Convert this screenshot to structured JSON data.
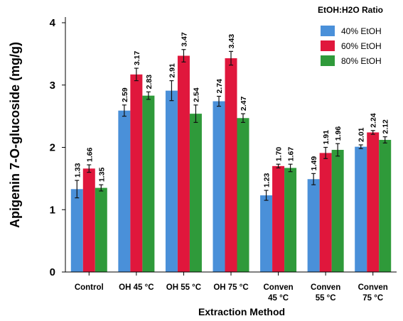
{
  "chart_data": {
    "type": "bar",
    "xlabel": "Extraction Method",
    "ylabel": "Apigenin 7-O-glucoside (mg/g)",
    "ylim": [
      0,
      4
    ],
    "yticks": [
      "0",
      "1",
      "2",
      "3",
      "4"
    ],
    "grid": false,
    "legend_position": "top-right",
    "legend_title": "EtOH:H2O Ratio",
    "categories": [
      [
        "Control"
      ],
      [
        "OH 45 °C"
      ],
      [
        "OH 55 °C"
      ],
      [
        "OH 75 °C"
      ],
      [
        "Conven",
        "45 °C"
      ],
      [
        "Conven",
        "55 °C"
      ],
      [
        "Conven",
        "75 °C"
      ]
    ],
    "series": [
      {
        "name": "40% EtOH",
        "color": "#4a90d9",
        "values": [
          1.33,
          2.59,
          2.91,
          2.74,
          1.23,
          1.49,
          2.01
        ],
        "labels": [
          "1.33",
          "2.59",
          "2.91",
          "2.74",
          "1.23",
          "1.49",
          "2.01"
        ],
        "errors": [
          0.14,
          0.09,
          0.16,
          0.08,
          0.08,
          0.09,
          0.03
        ]
      },
      {
        "name": "60% EtOH",
        "color": "#e0173c",
        "values": [
          1.66,
          3.17,
          3.47,
          3.43,
          1.7,
          1.91,
          2.24
        ],
        "labels": [
          "1.66",
          "3.17",
          "3.47",
          "3.43",
          "1.70",
          "1.91",
          "2.24"
        ],
        "errors": [
          0.06,
          0.1,
          0.1,
          0.11,
          0.03,
          0.09,
          0.03
        ]
      },
      {
        "name": "80% EtOH",
        "color": "#2f9a3a",
        "values": [
          1.35,
          2.83,
          2.54,
          2.47,
          1.67,
          1.96,
          2.12
        ],
        "labels": [
          "1.35",
          "2.83",
          "2.54",
          "2.47",
          "1.67",
          "1.96",
          "2.12"
        ],
        "errors": [
          0.05,
          0.06,
          0.14,
          0.07,
          0.06,
          0.1,
          0.05
        ]
      }
    ]
  }
}
